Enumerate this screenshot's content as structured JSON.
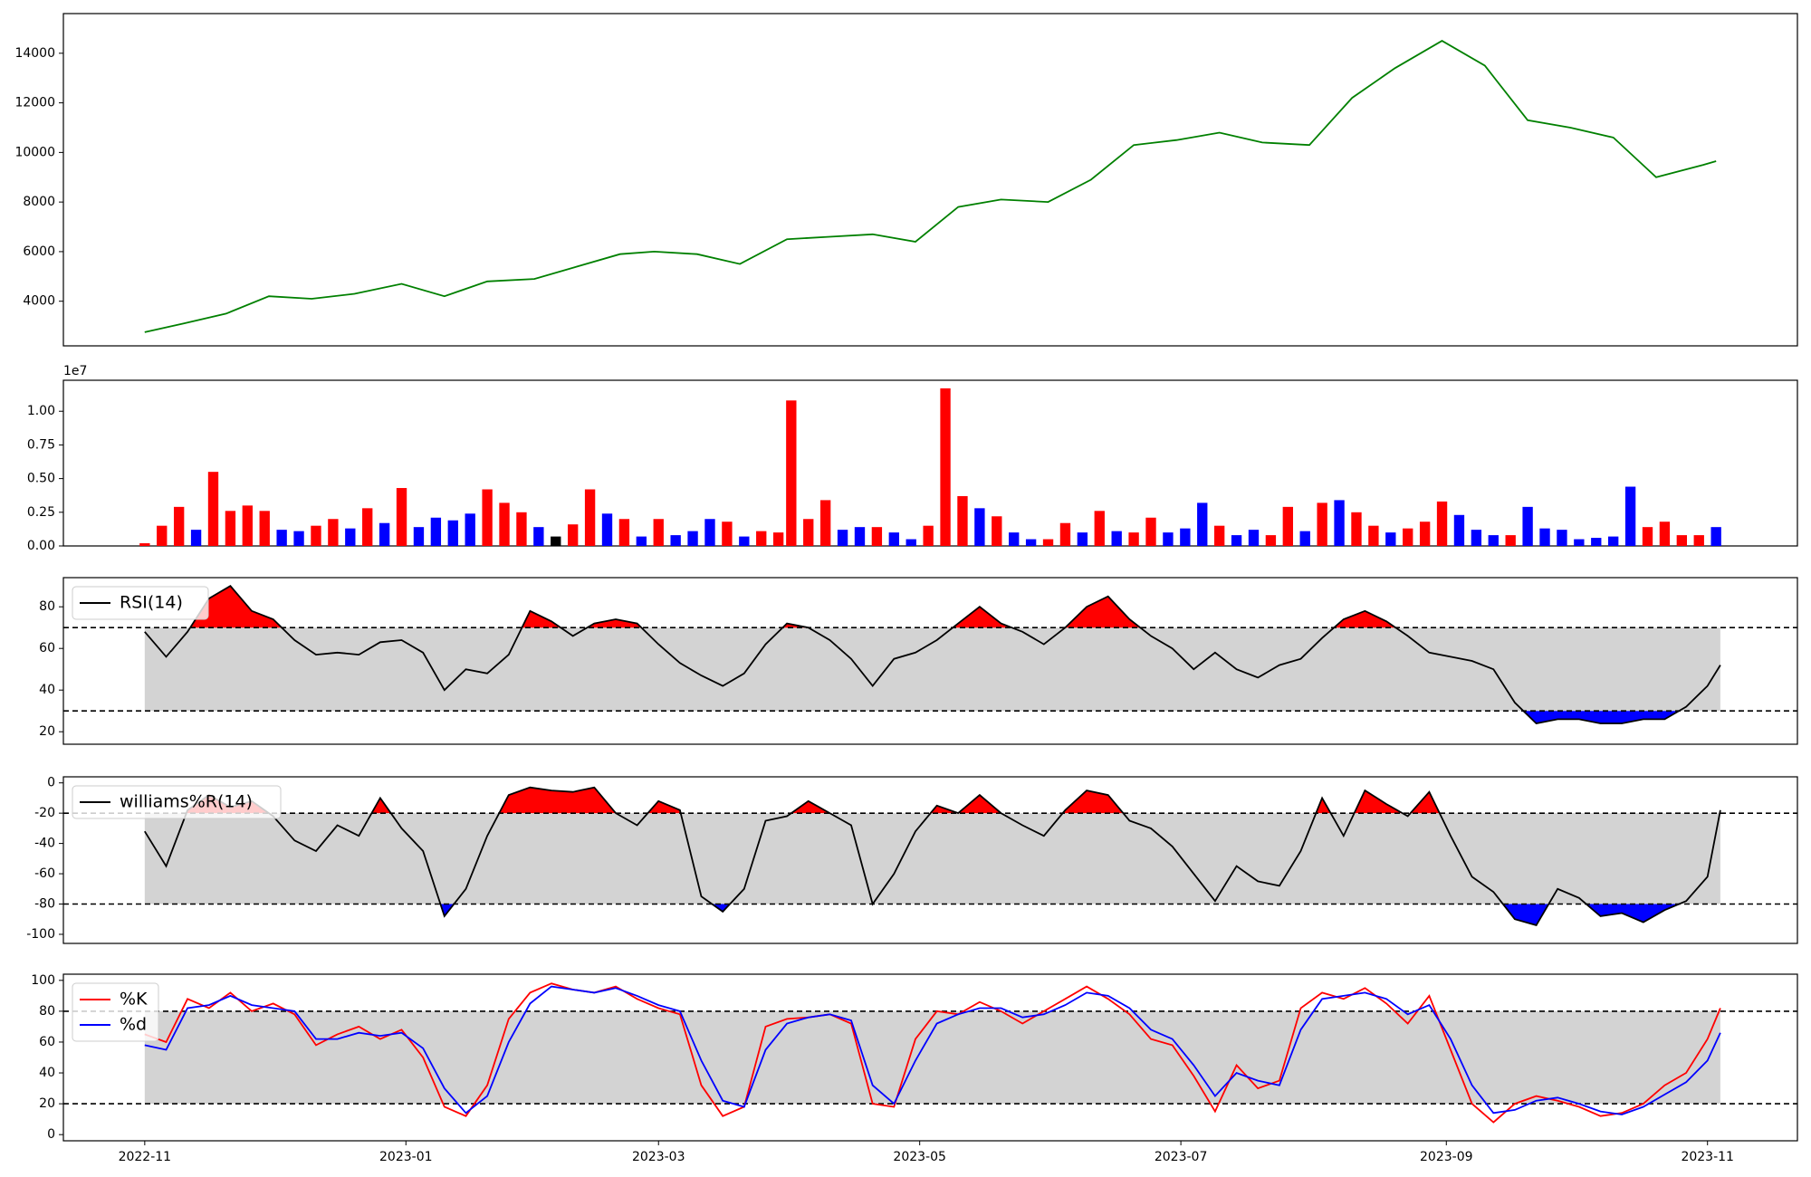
{
  "figure": {
    "x_tick_labels": [
      "2022-11",
      "2023-01",
      "2023-03",
      "2023-05",
      "2023-07",
      "2023-09",
      "2023-11"
    ],
    "x_tick_dates": [
      "2022-11-01",
      "2023-01-01",
      "2023-03-01",
      "2023-05-01",
      "2023-07-01",
      "2023-09-01",
      "2023-11-01"
    ],
    "x_range": [
      "2022-10-13",
      "2023-11-22"
    ],
    "colors": {
      "price": "#008000",
      "up_volume": "#ff0000",
      "down_volume": "#0000ff",
      "neutral_volume": "#000000",
      "band_fill": "#d3d3d3",
      "overbought_fill": "#ff0000",
      "oversold_fill": "#0000ff",
      "k_line": "#ff0000",
      "d_line": "#0000ff",
      "indicator_line": "#000000"
    }
  },
  "chart_data": [
    {
      "id": "price",
      "type": "line",
      "series": [
        {
          "x": [
            "2022-11-01",
            "2022-11-10",
            "2022-11-20",
            "2022-11-30",
            "2022-12-10",
            "2022-12-20",
            "2022-12-31",
            "2023-01-10",
            "2023-01-20",
            "2023-01-31",
            "2023-02-10",
            "2023-02-20",
            "2023-02-28",
            "2023-03-10",
            "2023-03-20",
            "2023-03-31",
            "2023-04-10",
            "2023-04-20",
            "2023-04-30",
            "2023-05-10",
            "2023-05-20",
            "2023-05-31",
            "2023-06-10",
            "2023-06-20",
            "2023-06-30",
            "2023-07-10",
            "2023-07-20",
            "2023-07-31",
            "2023-08-10",
            "2023-08-20",
            "2023-08-31",
            "2023-09-10",
            "2023-09-20",
            "2023-09-30",
            "2023-10-10",
            "2023-10-20",
            "2023-10-31",
            "2023-11-03"
          ],
          "values": [
            2750,
            3100,
            3500,
            4200,
            4100,
            4300,
            4700,
            4200,
            4800,
            4900,
            5400,
            5900,
            6000,
            5900,
            5500,
            6500,
            6600,
            6700,
            6400,
            7800,
            8100,
            8000,
            8900,
            10300,
            10500,
            10800,
            10400,
            10300,
            12200,
            13400,
            14500,
            13500,
            11300,
            11000,
            10600,
            9000,
            9500,
            9650
          ]
        }
      ],
      "yticks": [
        4000,
        6000,
        8000,
        10000,
        12000,
        14000
      ],
      "ylim": [
        2200,
        15600
      ]
    },
    {
      "id": "volume",
      "type": "bar",
      "offset_label": "1e7",
      "categories": [
        "2022-11-01",
        "2022-11-05",
        "2022-11-09",
        "2022-11-13",
        "2022-11-17",
        "2022-11-21",
        "2022-11-25",
        "2022-11-29",
        "2022-12-03",
        "2022-12-07",
        "2022-12-11",
        "2022-12-15",
        "2022-12-19",
        "2022-12-23",
        "2022-12-27",
        "2022-12-31",
        "2023-01-04",
        "2023-01-08",
        "2023-01-12",
        "2023-01-16",
        "2023-01-20",
        "2023-01-24",
        "2023-01-28",
        "2023-02-01",
        "2023-02-05",
        "2023-02-09",
        "2023-02-13",
        "2023-02-17",
        "2023-02-21",
        "2023-02-25",
        "2023-03-01",
        "2023-03-05",
        "2023-03-09",
        "2023-03-13",
        "2023-03-17",
        "2023-03-21",
        "2023-03-25",
        "2023-03-29",
        "2023-04-01",
        "2023-04-05",
        "2023-04-09",
        "2023-04-13",
        "2023-04-17",
        "2023-04-21",
        "2023-04-25",
        "2023-04-29",
        "2023-05-03",
        "2023-05-07",
        "2023-05-11",
        "2023-05-15",
        "2023-05-19",
        "2023-05-23",
        "2023-05-27",
        "2023-05-31",
        "2023-06-04",
        "2023-06-08",
        "2023-06-12",
        "2023-06-16",
        "2023-06-20",
        "2023-06-24",
        "2023-06-28",
        "2023-07-02",
        "2023-07-06",
        "2023-07-10",
        "2023-07-14",
        "2023-07-18",
        "2023-07-22",
        "2023-07-26",
        "2023-07-30",
        "2023-08-03",
        "2023-08-07",
        "2023-08-11",
        "2023-08-15",
        "2023-08-19",
        "2023-08-23",
        "2023-08-27",
        "2023-08-31",
        "2023-09-04",
        "2023-09-08",
        "2023-09-12",
        "2023-09-16",
        "2023-09-20",
        "2023-09-24",
        "2023-09-28",
        "2023-10-02",
        "2023-10-06",
        "2023-10-10",
        "2023-10-14",
        "2023-10-18",
        "2023-10-22",
        "2023-10-26",
        "2023-10-30",
        "2023-11-03"
      ],
      "values": [
        0.02,
        0.15,
        0.29,
        0.12,
        0.55,
        0.26,
        0.3,
        0.26,
        0.12,
        0.11,
        0.15,
        0.2,
        0.13,
        0.28,
        0.17,
        0.43,
        0.14,
        0.21,
        0.19,
        0.24,
        0.42,
        0.32,
        0.25,
        0.14,
        0.07,
        0.16,
        0.42,
        0.24,
        0.2,
        0.07,
        0.2,
        0.08,
        0.11,
        0.2,
        0.18,
        0.07,
        0.11,
        0.1,
        1.08,
        0.2,
        0.34,
        0.12,
        0.14,
        0.14,
        0.1,
        0.05,
        0.15,
        1.17,
        0.37,
        0.28,
        0.22,
        0.1,
        0.05,
        0.05,
        0.17,
        0.1,
        0.26,
        0.11,
        0.1,
        0.21,
        0.1,
        0.13,
        0.32,
        0.15,
        0.08,
        0.12,
        0.08,
        0.29,
        0.11,
        0.32,
        0.34,
        0.25,
        0.15,
        0.1,
        0.13,
        0.18,
        0.33,
        0.23,
        0.12,
        0.08,
        0.08,
        0.29,
        0.13,
        0.12,
        0.05,
        0.06,
        0.07,
        0.44,
        0.14,
        0.18,
        0.08,
        0.08,
        0.14
      ],
      "colors": [
        "red",
        "red",
        "red",
        "blue",
        "red",
        "red",
        "red",
        "red",
        "blue",
        "blue",
        "red",
        "red",
        "blue",
        "red",
        "blue",
        "red",
        "blue",
        "blue",
        "blue",
        "blue",
        "red",
        "red",
        "red",
        "blue",
        "black",
        "red",
        "red",
        "blue",
        "red",
        "blue",
        "red",
        "blue",
        "blue",
        "blue",
        "red",
        "blue",
        "red",
        "red",
        "red",
        "red",
        "red",
        "blue",
        "blue",
        "red",
        "blue",
        "blue",
        "red",
        "red",
        "red",
        "blue",
        "red",
        "blue",
        "blue",
        "red",
        "red",
        "blue",
        "red",
        "blue",
        "red",
        "red",
        "blue",
        "blue",
        "blue",
        "red",
        "blue",
        "blue",
        "red",
        "red",
        "blue",
        "red",
        "blue",
        "red",
        "red",
        "blue",
        "red",
        "red",
        "red",
        "blue",
        "blue",
        "blue",
        "red",
        "blue",
        "blue",
        "blue",
        "blue",
        "blue",
        "blue",
        "blue",
        "red",
        "red",
        "red",
        "red",
        "blue"
      ],
      "yticks": [
        0.0,
        0.25,
        0.5,
        0.75,
        1.0
      ],
      "ytick_labels": [
        "0.00",
        "0.25",
        "0.50",
        "0.75",
        "1.00"
      ],
      "ylim": [
        0,
        1.23
      ]
    },
    {
      "id": "rsi",
      "type": "line",
      "legend": "RSI(14)",
      "x": [
        "2022-11-01",
        "2022-11-06",
        "2022-11-11",
        "2022-11-16",
        "2022-11-21",
        "2022-11-26",
        "2022-12-01",
        "2022-12-06",
        "2022-12-11",
        "2022-12-16",
        "2022-12-21",
        "2022-12-26",
        "2022-12-31",
        "2023-01-05",
        "2023-01-10",
        "2023-01-15",
        "2023-01-20",
        "2023-01-25",
        "2023-01-30",
        "2023-02-04",
        "2023-02-09",
        "2023-02-14",
        "2023-02-19",
        "2023-02-24",
        "2023-03-01",
        "2023-03-06",
        "2023-03-11",
        "2023-03-16",
        "2023-03-21",
        "2023-03-26",
        "2023-03-31",
        "2023-04-05",
        "2023-04-10",
        "2023-04-15",
        "2023-04-20",
        "2023-04-25",
        "2023-04-30",
        "2023-05-05",
        "2023-05-10",
        "2023-05-15",
        "2023-05-20",
        "2023-05-25",
        "2023-05-30",
        "2023-06-04",
        "2023-06-09",
        "2023-06-14",
        "2023-06-19",
        "2023-06-24",
        "2023-06-29",
        "2023-07-04",
        "2023-07-09",
        "2023-07-14",
        "2023-07-19",
        "2023-07-24",
        "2023-07-29",
        "2023-08-03",
        "2023-08-08",
        "2023-08-13",
        "2023-08-18",
        "2023-08-23",
        "2023-08-28",
        "2023-09-02",
        "2023-09-07",
        "2023-09-12",
        "2023-09-17",
        "2023-09-22",
        "2023-09-27",
        "2023-10-02",
        "2023-10-07",
        "2023-10-12",
        "2023-10-17",
        "2023-10-22",
        "2023-10-27",
        "2023-11-01",
        "2023-11-04"
      ],
      "values": [
        68,
        56,
        68,
        84,
        90,
        78,
        74,
        64,
        57,
        58,
        57,
        63,
        64,
        58,
        40,
        50,
        48,
        57,
        78,
        73,
        66,
        72,
        74,
        72,
        62,
        53,
        47,
        42,
        48,
        62,
        72,
        70,
        64,
        55,
        42,
        55,
        58,
        64,
        72,
        80,
        72,
        68,
        62,
        70,
        80,
        85,
        74,
        66,
        60,
        50,
        58,
        50,
        46,
        52,
        55,
        65,
        74,
        78,
        73,
        66,
        58,
        56,
        54,
        50,
        34,
        24,
        26,
        26,
        24,
        24,
        26,
        26,
        32,
        42,
        52
      ],
      "hlines": [
        70,
        30
      ],
      "yticks": [
        20,
        40,
        60,
        80
      ],
      "ylim": [
        14,
        94
      ]
    },
    {
      "id": "williams",
      "type": "line",
      "legend": "williams%R(14)",
      "x": [
        "2022-11-01",
        "2022-11-06",
        "2022-11-11",
        "2022-11-16",
        "2022-11-21",
        "2022-11-26",
        "2022-12-01",
        "2022-12-06",
        "2022-12-11",
        "2022-12-16",
        "2022-12-21",
        "2022-12-26",
        "2022-12-31",
        "2023-01-05",
        "2023-01-10",
        "2023-01-15",
        "2023-01-20",
        "2023-01-25",
        "2023-01-30",
        "2023-02-04",
        "2023-02-09",
        "2023-02-14",
        "2023-02-19",
        "2023-02-24",
        "2023-03-01",
        "2023-03-06",
        "2023-03-11",
        "2023-03-16",
        "2023-03-21",
        "2023-03-26",
        "2023-03-31",
        "2023-04-05",
        "2023-04-10",
        "2023-04-15",
        "2023-04-20",
        "2023-04-25",
        "2023-04-30",
        "2023-05-05",
        "2023-05-10",
        "2023-05-15",
        "2023-05-20",
        "2023-05-25",
        "2023-05-30",
        "2023-06-04",
        "2023-06-09",
        "2023-06-14",
        "2023-06-19",
        "2023-06-24",
        "2023-06-29",
        "2023-07-04",
        "2023-07-09",
        "2023-07-14",
        "2023-07-19",
        "2023-07-24",
        "2023-07-29",
        "2023-08-03",
        "2023-08-08",
        "2023-08-13",
        "2023-08-18",
        "2023-08-23",
        "2023-08-28",
        "2023-09-02",
        "2023-09-07",
        "2023-09-12",
        "2023-09-17",
        "2023-09-22",
        "2023-09-27",
        "2023-10-02",
        "2023-10-07",
        "2023-10-12",
        "2023-10-17",
        "2023-10-22",
        "2023-10-27",
        "2023-11-01",
        "2023-11-04"
      ],
      "values": [
        -32,
        -55,
        -18,
        -8,
        -16,
        -12,
        -22,
        -38,
        -45,
        -28,
        -35,
        -10,
        -30,
        -45,
        -88,
        -70,
        -35,
        -8,
        -3,
        -5,
        -6,
        -3,
        -20,
        -28,
        -12,
        -18,
        -75,
        -85,
        -70,
        -25,
        -22,
        -12,
        -20,
        -28,
        -80,
        -60,
        -32,
        -15,
        -20,
        -8,
        -20,
        -28,
        -35,
        -18,
        -5,
        -8,
        -25,
        -30,
        -42,
        -60,
        -78,
        -55,
        -65,
        -68,
        -45,
        -10,
        -35,
        -5,
        -14,
        -22,
        -6,
        -35,
        -62,
        -72,
        -90,
        -94,
        -70,
        -76,
        -88,
        -86,
        -92,
        -84,
        -78,
        -62,
        -18
      ],
      "hlines": [
        -20,
        -80
      ],
      "yticks": [
        0,
        -20,
        -40,
        -60,
        -80,
        -100
      ],
      "ylim": [
        -106,
        4
      ]
    },
    {
      "id": "stochastic",
      "type": "line",
      "series": [
        {
          "name": "%K",
          "values": [
            65,
            60,
            88,
            82,
            92,
            80,
            85,
            78,
            58,
            65,
            70,
            62,
            68,
            50,
            18,
            12,
            32,
            75,
            92,
            98,
            94,
            92,
            96,
            88,
            82,
            78,
            32,
            12,
            18,
            70,
            75,
            76,
            78,
            72,
            20,
            18,
            62,
            80,
            78,
            86,
            80,
            72,
            80,
            88,
            96,
            88,
            78,
            62,
            58,
            38,
            15,
            45,
            30,
            35,
            82,
            92,
            88,
            95,
            85,
            72,
            90,
            55,
            20,
            8,
            20,
            25,
            22,
            18,
            12,
            14,
            20,
            32,
            40,
            62,
            82
          ]
        },
        {
          "name": "%d",
          "values": [
            58,
            55,
            82,
            84,
            90,
            84,
            82,
            80,
            62,
            62,
            66,
            64,
            66,
            56,
            30,
            14,
            25,
            60,
            85,
            96,
            94,
            92,
            95,
            90,
            84,
            80,
            48,
            22,
            18,
            55,
            72,
            76,
            78,
            74,
            32,
            20,
            48,
            72,
            78,
            82,
            82,
            76,
            78,
            84,
            92,
            90,
            82,
            68,
            62,
            45,
            25,
            40,
            35,
            32,
            68,
            88,
            90,
            92,
            88,
            78,
            84,
            62,
            32,
            14,
            16,
            22,
            24,
            20,
            15,
            13,
            18,
            26,
            34,
            48,
            66
          ]
        }
      ],
      "x": [
        "2022-11-01",
        "2022-11-06",
        "2022-11-11",
        "2022-11-16",
        "2022-11-21",
        "2022-11-26",
        "2022-12-01",
        "2022-12-06",
        "2022-12-11",
        "2022-12-16",
        "2022-12-21",
        "2022-12-26",
        "2022-12-31",
        "2023-01-05",
        "2023-01-10",
        "2023-01-15",
        "2023-01-20",
        "2023-01-25",
        "2023-01-30",
        "2023-02-04",
        "2023-02-09",
        "2023-02-14",
        "2023-02-19",
        "2023-02-24",
        "2023-03-01",
        "2023-03-06",
        "2023-03-11",
        "2023-03-16",
        "2023-03-21",
        "2023-03-26",
        "2023-03-31",
        "2023-04-05",
        "2023-04-10",
        "2023-04-15",
        "2023-04-20",
        "2023-04-25",
        "2023-04-30",
        "2023-05-05",
        "2023-05-10",
        "2023-05-15",
        "2023-05-20",
        "2023-05-25",
        "2023-05-30",
        "2023-06-04",
        "2023-06-09",
        "2023-06-14",
        "2023-06-19",
        "2023-06-24",
        "2023-06-29",
        "2023-07-04",
        "2023-07-09",
        "2023-07-14",
        "2023-07-19",
        "2023-07-24",
        "2023-07-29",
        "2023-08-03",
        "2023-08-08",
        "2023-08-13",
        "2023-08-18",
        "2023-08-23",
        "2023-08-28",
        "2023-09-02",
        "2023-09-07",
        "2023-09-12",
        "2023-09-17",
        "2023-09-22",
        "2023-09-27",
        "2023-10-02",
        "2023-10-07",
        "2023-10-12",
        "2023-10-17",
        "2023-10-22",
        "2023-10-27",
        "2023-11-01",
        "2023-11-04"
      ],
      "hlines": [
        80,
        20
      ],
      "yticks": [
        0,
        20,
        40,
        60,
        80,
        100
      ],
      "ylim": [
        -4,
        104
      ]
    }
  ]
}
